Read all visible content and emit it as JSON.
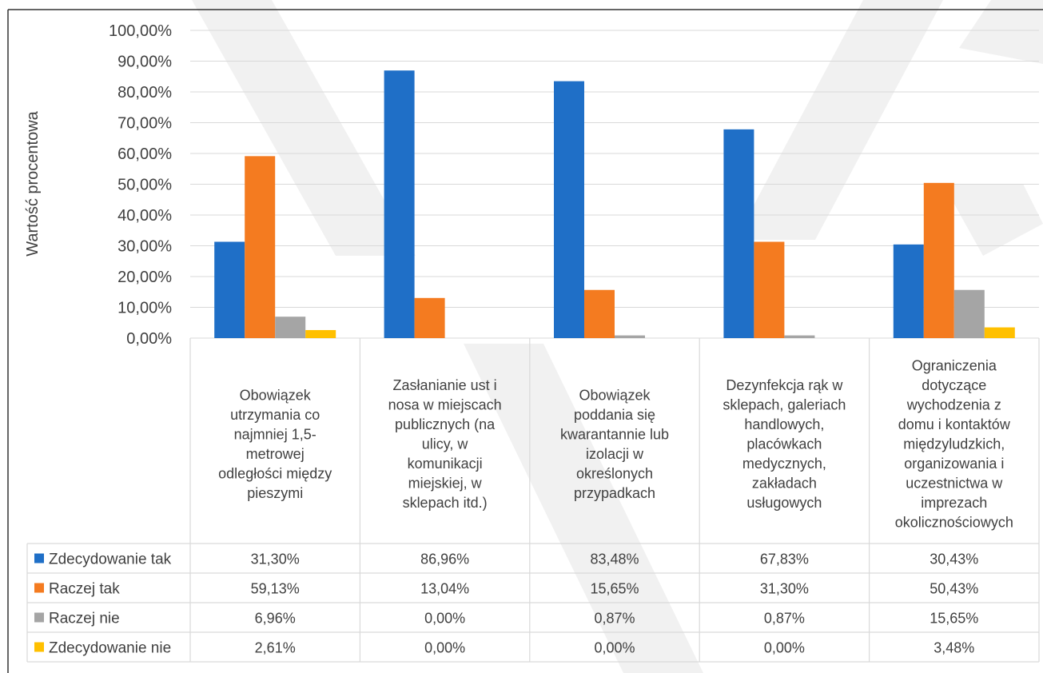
{
  "chart_data": {
    "type": "bar",
    "title": "",
    "xlabel": "",
    "ylabel": "Wartość procentowa",
    "ylim": [
      0,
      100
    ],
    "yticks": [
      "0,00%",
      "10,00%",
      "20,00%",
      "30,00%",
      "40,00%",
      "50,00%",
      "60,00%",
      "70,00%",
      "80,00%",
      "90,00%",
      "100,00%"
    ],
    "grid": true,
    "legend": "data-table-left",
    "categories": [
      "Obowiązek utrzymania co najmniej 1,5-metrowej odległości między pieszymi",
      "Zasłanianie ust i nosa w miejscach publicznych (na ulicy, w komunikacji miejskiej, w sklepach itd.)",
      "Obowiązek poddania się kwarantannie lub izolacji w określonych przypadkach",
      "Dezynfekcja rąk w sklepach, galeriach handlowych, placówkach medycznych, zakładach usługowych",
      "Ograniczenia dotyczące wychodzenia z domu i kontaktów międzyludzkich, organizowania i uczestnictwa w imprezach okolicznościowych"
    ],
    "category_lines": [
      [
        "Obowiązek",
        "utrzymania co",
        "najmniej 1,5-",
        "metrowej",
        "odległości między",
        "pieszymi"
      ],
      [
        "Zasłanianie ust i",
        "nosa w miejscach",
        "publicznych (na",
        "ulicy, w",
        "komunikacji",
        "miejskiej, w",
        "sklepach itd.)"
      ],
      [
        "Obowiązek",
        "poddania się",
        "kwarantannie lub",
        "izolacji w",
        "określonych",
        "przypadkach"
      ],
      [
        "Dezynfekcja rąk w",
        "sklepach, galeriach",
        "handlowych,",
        "placówkach",
        "medycznych,",
        "zakładach",
        "usługowych"
      ],
      [
        "Ograniczenia",
        "dotyczące",
        "wychodzenia z",
        "domu i kontaktów",
        "międzyludzkich,",
        "organizowania i",
        "uczestnictwa w",
        "imprezach",
        "okolicznościowych"
      ]
    ],
    "series": [
      {
        "name": "Zdecydowanie tak",
        "color": "#1f6fc7",
        "values": [
          31.3,
          86.96,
          83.48,
          67.83,
          30.43
        ],
        "labels": [
          "31,30%",
          "86,96%",
          "83,48%",
          "67,83%",
          "30,43%"
        ]
      },
      {
        "name": "Raczej tak",
        "color": "#f47b20",
        "values": [
          59.13,
          13.04,
          15.65,
          31.3,
          50.43
        ],
        "labels": [
          "59,13%",
          "13,04%",
          "15,65%",
          "31,30%",
          "50,43%"
        ]
      },
      {
        "name": "Raczej nie",
        "color": "#a5a5a5",
        "values": [
          6.96,
          0.0,
          0.87,
          0.87,
          15.65
        ],
        "labels": [
          "6,96%",
          "0,00%",
          "0,87%",
          "0,87%",
          "15,65%"
        ]
      },
      {
        "name": "Zdecydowanie nie",
        "color": "#ffc000",
        "values": [
          2.61,
          0.0,
          0.0,
          0.0,
          3.48
        ],
        "labels": [
          "2,61%",
          "0,00%",
          "0,00%",
          "0,00%",
          "3,48%"
        ]
      }
    ]
  }
}
